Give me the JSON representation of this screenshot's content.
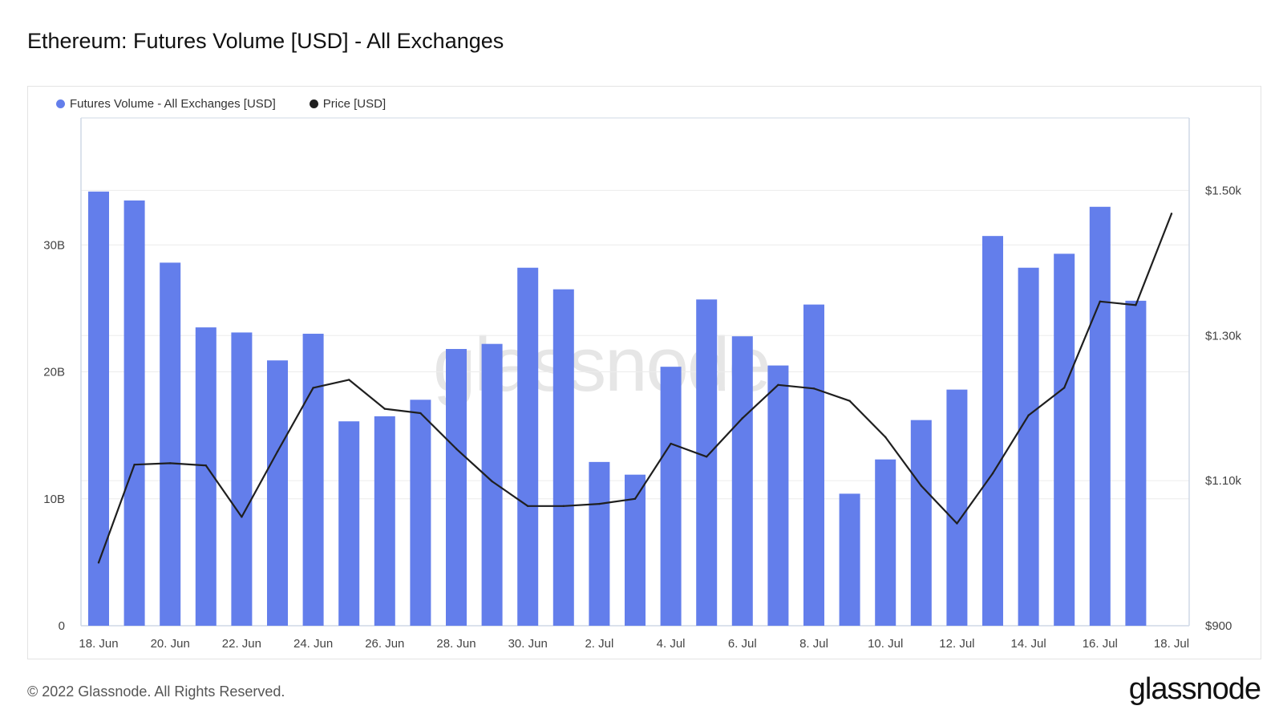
{
  "title": "Ethereum: Futures Volume [USD] - All Exchanges",
  "footer": "© 2022 Glassnode. All Rights Reserved.",
  "brand": "glassnode",
  "watermark": "glassnode",
  "colors": {
    "bar": "#637eeb",
    "line": "#1f1f1f",
    "grid": "#ececec",
    "axis": "#cfd8e6"
  },
  "chart_data": {
    "type": "bar",
    "legend_position": "top-left",
    "grid": true,
    "series": [
      {
        "name": "Futures Volume - All Exchanges [USD]",
        "type": "bar",
        "axis": "left",
        "values": [
          34.2,
          33.5,
          28.6,
          23.5,
          23.1,
          20.9,
          23.0,
          16.1,
          16.5,
          17.8,
          21.8,
          22.2,
          28.2,
          26.5,
          12.9,
          11.9,
          20.4,
          25.7,
          22.8,
          20.5,
          25.3,
          10.4,
          13.1,
          16.2,
          18.6,
          30.7,
          28.2,
          29.3,
          33.0,
          25.6
        ],
        "unit": "B USD"
      },
      {
        "name": "Price [USD]",
        "type": "line",
        "axis": "right",
        "values": [
          987,
          1122,
          1124,
          1121,
          1050,
          1140,
          1228,
          1239,
          1199,
          1193,
          1144,
          1099,
          1065,
          1065,
          1068,
          1075,
          1151,
          1133,
          1186,
          1232,
          1227,
          1210,
          1160,
          1093,
          1041,
          1110,
          1190,
          1228,
          1347,
          1342,
          1468
        ],
        "unit": "USD"
      }
    ],
    "bar_dates": [
      "18. Jun",
      "19. Jun",
      "20. Jun",
      "21. Jun",
      "22. Jun",
      "23. Jun",
      "24. Jun",
      "25. Jun",
      "26. Jun",
      "27. Jun",
      "28. Jun",
      "29. Jun",
      "30. Jun",
      "1. Jul",
      "2. Jul",
      "3. Jul",
      "4. Jul",
      "5. Jul",
      "6. Jul",
      "7. Jul",
      "8. Jul",
      "9. Jul",
      "10. Jul",
      "11. Jul",
      "12. Jul",
      "13. Jul",
      "14. Jul",
      "15. Jul",
      "16. Jul",
      "17. Jul"
    ],
    "line_dates": [
      "18. Jun",
      "19. Jun",
      "20. Jun",
      "21. Jun",
      "22. Jun",
      "23. Jun",
      "24. Jun",
      "25. Jun",
      "26. Jun",
      "27. Jun",
      "28. Jun",
      "29. Jun",
      "30. Jun",
      "1. Jul",
      "2. Jul",
      "3. Jul",
      "4. Jul",
      "5. Jul",
      "6. Jul",
      "7. Jul",
      "8. Jul",
      "9. Jul",
      "10. Jul",
      "11. Jul",
      "12. Jul",
      "13. Jul",
      "14. Jul",
      "15. Jul",
      "16. Jul",
      "17. Jul",
      "18. Jul"
    ],
    "x_ticks": [
      "18. Jun",
      "20. Jun",
      "22. Jun",
      "24. Jun",
      "26. Jun",
      "28. Jun",
      "30. Jun",
      "2. Jul",
      "4. Jul",
      "6. Jul",
      "8. Jul",
      "10. Jul",
      "12. Jul",
      "14. Jul",
      "16. Jul",
      "18. Jul"
    ],
    "y_left": {
      "ylim": [
        0,
        40
      ],
      "ticks": [
        0,
        10,
        20,
        30
      ],
      "tick_labels": [
        "0",
        "10B",
        "20B",
        "30B"
      ]
    },
    "y_right": {
      "ylim": [
        900,
        1600
      ],
      "ticks": [
        900,
        1100,
        1300,
        1500
      ],
      "tick_labels": [
        "$900",
        "$1.10k",
        "$1.30k",
        "$1.50k"
      ]
    }
  }
}
